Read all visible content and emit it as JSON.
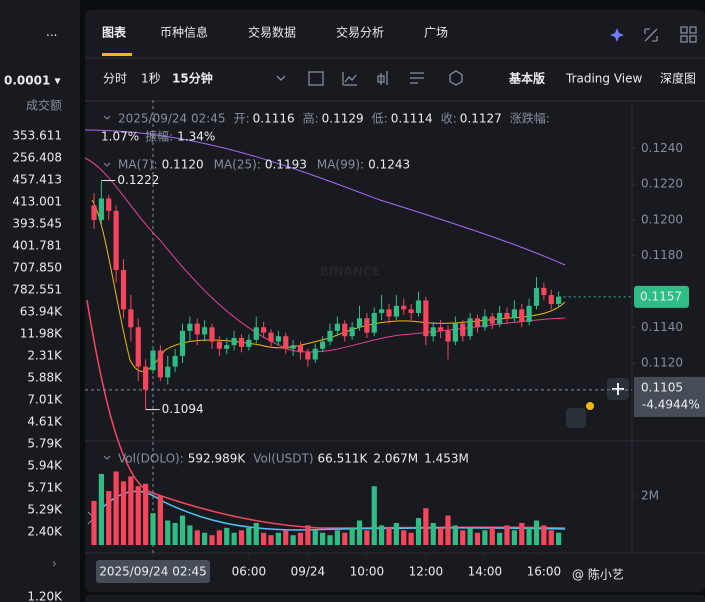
{
  "sidebar": {
    "menu": "···",
    "precision": "0.0001 ▾",
    "column": "成交额",
    "amounts": [
      "353.611",
      "256.408",
      "457.413",
      "413.001",
      "393.545",
      "401.781",
      "707.850",
      "782.551",
      "63.94K",
      "11.98K",
      "2.31K",
      "5.88K",
      "7.01K",
      "4.61K",
      "5.79K",
      "5.94K",
      "5.71K",
      "5.29K",
      "2.40K"
    ],
    "more": "›",
    "bottom": "1.20K"
  },
  "tabs": [
    "图表",
    "币种信息",
    "交易数据",
    "交易分析",
    "广场"
  ],
  "toolbar": {
    "intervals": [
      "分时",
      "1秒",
      "15分钟"
    ],
    "views": [
      "基本版",
      "Trading View",
      "深度图"
    ]
  },
  "info": {
    "time": "2025/09/24 02:45",
    "items": [
      {
        "label": "开:",
        "value": "0.1116"
      },
      {
        "label": "高:",
        "value": "0.1129"
      },
      {
        "label": "低:",
        "value": "0.1114"
      },
      {
        "label": "收:",
        "value": "0.1127"
      }
    ],
    "change_label": "涨跌幅:",
    "change": "1.07%",
    "amp_label": "振幅:",
    "amp": "1.34%"
  },
  "ma": [
    {
      "label": "MA(7):",
      "value": "0.1120",
      "color": "#f0b90b"
    },
    {
      "label": "MA(25):",
      "value": "0.1193",
      "color": "#e84393"
    },
    {
      "label": "MA(99):",
      "value": "0.1243",
      "color": "#a66df2"
    }
  ],
  "vol_info": {
    "base_label": "Vol(DOLO):",
    "base": "592.989K",
    "quote_label": "Vol(USDT)",
    "quote": "66.511K",
    "ma1": "2.067M",
    "ma2": "1.453M"
  },
  "watermark": "BINANCE",
  "credit": "@ 陈小艺",
  "chart": {
    "type": "candlestick",
    "up_color": "#2ebd85",
    "down_color": "#f6465d",
    "ylim": [
      0.1077,
      0.1267
    ],
    "yticks": [
      {
        "value": 0.124,
        "label": "0.1240"
      },
      {
        "value": 0.122,
        "label": "0.1220"
      },
      {
        "value": 0.12,
        "label": "0.1200"
      },
      {
        "value": 0.118,
        "label": "0.1180"
      },
      {
        "value": 0.114,
        "label": "0.1140"
      },
      {
        "value": 0.112,
        "label": "0.1120"
      }
    ],
    "last_price": {
      "value": 0.1157,
      "label": "0.1157"
    },
    "crosshair": {
      "index": 8,
      "value": 0.1105,
      "label": "0.1105",
      "change": "-4.4944%"
    },
    "high_marker": {
      "index": 1,
      "value": 0.1222,
      "label": "0.1222"
    },
    "low_marker": {
      "index": 7,
      "value": 0.1094,
      "label": "0.1094"
    },
    "xticks": [
      {
        "value": 8,
        "label": "2025/09/24 02:45"
      },
      {
        "value": 21,
        "label": "06:00"
      },
      {
        "value": 29,
        "label": "09/24"
      },
      {
        "value": 37,
        "label": "10:00"
      },
      {
        "value": 45,
        "label": "12:00"
      },
      {
        "value": 53,
        "label": "14:00"
      },
      {
        "value": 61,
        "label": "16:00"
      }
    ],
    "candles": [
      [
        0.1208,
        0.1215,
        0.1195,
        0.12
      ],
      [
        0.12,
        0.1222,
        0.1198,
        0.1212
      ],
      [
        0.1212,
        0.1214,
        0.12,
        0.1205
      ],
      [
        0.1205,
        0.1208,
        0.1165,
        0.1172
      ],
      [
        0.1172,
        0.1178,
        0.1145,
        0.115
      ],
      [
        0.115,
        0.1158,
        0.1132,
        0.114
      ],
      [
        0.114,
        0.1145,
        0.111,
        0.1118
      ],
      [
        0.1118,
        0.1122,
        0.1094,
        0.1105
      ],
      [
        0.1116,
        0.1129,
        0.1114,
        0.1127
      ],
      [
        0.1127,
        0.113,
        0.111,
        0.1112
      ],
      [
        0.1112,
        0.1124,
        0.1108,
        0.1118
      ],
      [
        0.1118,
        0.1128,
        0.1115,
        0.1124
      ],
      [
        0.1124,
        0.1142,
        0.112,
        0.1138
      ],
      [
        0.1138,
        0.1146,
        0.1132,
        0.1142
      ],
      [
        0.1142,
        0.1145,
        0.113,
        0.1136
      ],
      [
        0.1136,
        0.1144,
        0.1132,
        0.114
      ],
      [
        0.114,
        0.1142,
        0.1128,
        0.1132
      ],
      [
        0.1132,
        0.1135,
        0.1124,
        0.1128
      ],
      [
        0.1128,
        0.1134,
        0.1125,
        0.113
      ],
      [
        0.113,
        0.1138,
        0.1127,
        0.1134
      ],
      [
        0.1134,
        0.1136,
        0.1126,
        0.1129
      ],
      [
        0.1129,
        0.1136,
        0.1127,
        0.1133
      ],
      [
        0.1133,
        0.1146,
        0.1131,
        0.114
      ],
      [
        0.114,
        0.1143,
        0.1134,
        0.1137
      ],
      [
        0.1137,
        0.1139,
        0.1129,
        0.1132
      ],
      [
        0.1132,
        0.1138,
        0.113,
        0.1135
      ],
      [
        0.1135,
        0.1137,
        0.1125,
        0.1128
      ],
      [
        0.1128,
        0.1133,
        0.1124,
        0.113
      ],
      [
        0.113,
        0.1132,
        0.1122,
        0.1126
      ],
      [
        0.1126,
        0.1128,
        0.1118,
        0.1122
      ],
      [
        0.1122,
        0.1131,
        0.112,
        0.1128
      ],
      [
        0.1128,
        0.1135,
        0.1126,
        0.1132
      ],
      [
        0.1132,
        0.1142,
        0.113,
        0.1138
      ],
      [
        0.1138,
        0.1146,
        0.1135,
        0.1142
      ],
      [
        0.1142,
        0.1144,
        0.1132,
        0.1135
      ],
      [
        0.1135,
        0.1143,
        0.1133,
        0.114
      ],
      [
        0.114,
        0.1152,
        0.1138,
        0.1145
      ],
      [
        0.1145,
        0.1148,
        0.1134,
        0.1137
      ],
      [
        0.1137,
        0.1151,
        0.1135,
        0.1148
      ],
      [
        0.1148,
        0.1158,
        0.1144,
        0.115
      ],
      [
        0.115,
        0.1153,
        0.1142,
        0.1146
      ],
      [
        0.1146,
        0.1158,
        0.1144,
        0.1152
      ],
      [
        0.1152,
        0.1156,
        0.1147,
        0.115
      ],
      [
        0.115,
        0.1153,
        0.1144,
        0.1148
      ],
      [
        0.1148,
        0.116,
        0.1146,
        0.1155
      ],
      [
        0.1155,
        0.1157,
        0.113,
        0.1135
      ],
      [
        0.1135,
        0.1143,
        0.1132,
        0.114
      ],
      [
        0.114,
        0.1144,
        0.1134,
        0.1138
      ],
      [
        0.1138,
        0.1141,
        0.1122,
        0.1132
      ],
      [
        0.1132,
        0.1146,
        0.113,
        0.1142
      ],
      [
        0.1142,
        0.1144,
        0.1132,
        0.1135
      ],
      [
        0.1135,
        0.1148,
        0.1133,
        0.1145
      ],
      [
        0.1145,
        0.1147,
        0.1137,
        0.114
      ],
      [
        0.114,
        0.115,
        0.1138,
        0.1146
      ],
      [
        0.1146,
        0.1148,
        0.1139,
        0.1142
      ],
      [
        0.1142,
        0.1152,
        0.114,
        0.1148
      ],
      [
        0.1148,
        0.1151,
        0.1142,
        0.1145
      ],
      [
        0.1145,
        0.1155,
        0.1143,
        0.115
      ],
      [
        0.115,
        0.1153,
        0.114,
        0.1143
      ],
      [
        0.1143,
        0.1156,
        0.1141,
        0.1152
      ],
      [
        0.1152,
        0.1168,
        0.115,
        0.1162
      ],
      [
        0.1162,
        0.1165,
        0.1155,
        0.1158
      ],
      [
        0.1158,
        0.1161,
        0.115,
        0.1153
      ],
      [
        0.1153,
        0.116,
        0.1151,
        0.1157
      ]
    ],
    "vlim": [
      0,
      4000000
    ],
    "vticks": [
      {
        "value": 2000000,
        "label": "2M"
      }
    ],
    "volumes": [
      1800000,
      2900000,
      2200000,
      3000000,
      2600000,
      2800000,
      2400000,
      2500000,
      1300000,
      2000000,
      1000000,
      900000,
      1200000,
      800000,
      600000,
      500000,
      400000,
      600000,
      700000,
      500000,
      600000,
      700000,
      900000,
      500000,
      400000,
      500000,
      600000,
      400000,
      500000,
      800000,
      600000,
      500000,
      400000,
      600000,
      500000,
      700000,
      1000000,
      600000,
      2400000,
      800000,
      700000,
      900000,
      600000,
      500000,
      1100000,
      1500000,
      900000,
      700000,
      1200000,
      800000,
      600000,
      700000,
      500000,
      600000,
      700000,
      500000,
      800000,
      600000,
      900000,
      700000,
      1000000,
      800000,
      600000,
      500000
    ]
  }
}
